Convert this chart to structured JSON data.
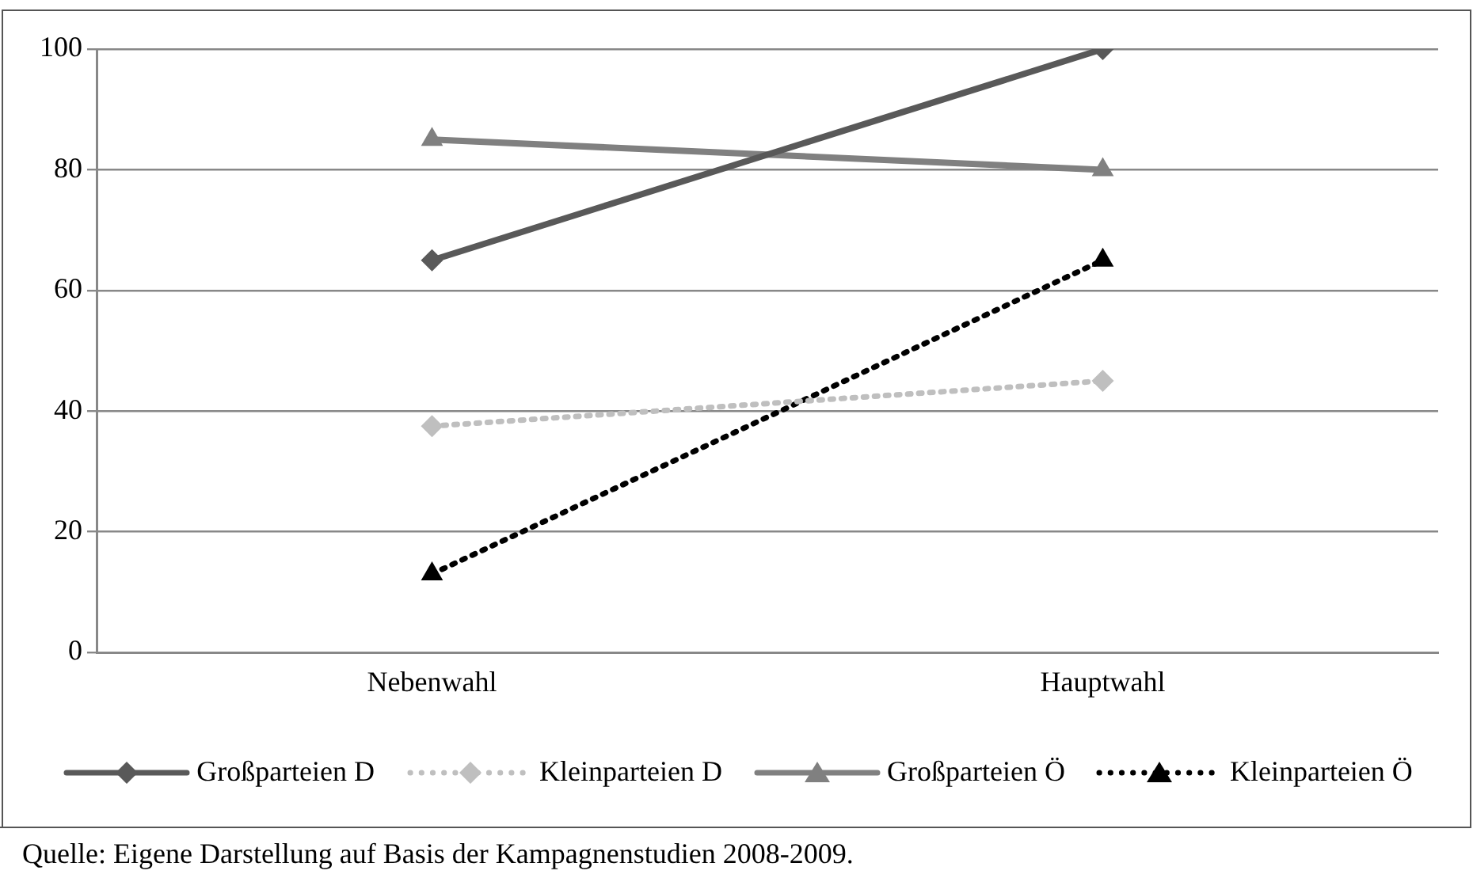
{
  "chart_data": {
    "type": "line",
    "categories": [
      "Nebenwahl",
      "Hauptwahl"
    ],
    "series": [
      {
        "name": "Großparteien D",
        "color": "#595959",
        "values": [
          65,
          100
        ],
        "marker": "diamond",
        "line_style": "solid"
      },
      {
        "name": "Kleinparteien D",
        "color": "#bfbfbf",
        "values": [
          37.5,
          45
        ],
        "marker": "diamond",
        "line_style": "dotted"
      },
      {
        "name": "Großparteien Ö",
        "color": "#808080",
        "values": [
          85,
          80
        ],
        "marker": "triangle",
        "line_style": "solid"
      },
      {
        "name": "Kleinparteien Ö",
        "color": "#000000",
        "values": [
          13,
          65
        ],
        "marker": "triangle",
        "line_style": "dotted"
      }
    ],
    "ylim": [
      0,
      100
    ],
    "yticks": [
      0,
      20,
      40,
      60,
      80,
      100
    ],
    "grid": "y",
    "legend": "bottom",
    "annotations": [
      "Quelle: Eigene Darstellung auf Basis der Kampagnenstudien 2008-2009."
    ]
  }
}
